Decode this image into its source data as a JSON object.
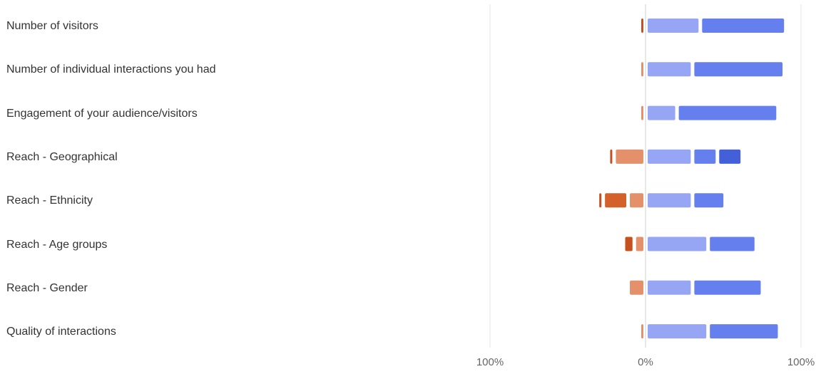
{
  "chart_data": {
    "type": "bar",
    "orientation": "horizontal-diverging",
    "categories": [
      "Number of visitors",
      "Number of individual interactions you had",
      "Engagement of your audience/visitors",
      "Reach - Geographical",
      "Reach - Ethnicity",
      "Reach - Age groups",
      "Reach - Gender",
      "Quality of interactions"
    ],
    "negative_series": [
      {
        "color": "#c7501f",
        "values": [
          1,
          0,
          0,
          1.5,
          2,
          7,
          0,
          0
        ]
      },
      {
        "color": "#d4612a",
        "values": [
          0,
          0,
          0,
          0,
          16,
          0,
          0,
          0
        ]
      },
      {
        "color": "#e3906b",
        "values": [
          0,
          1,
          1,
          20,
          11,
          7,
          11,
          1
        ]
      }
    ],
    "positive_series": [
      {
        "color": "#97a5f5",
        "values": [
          35,
          30,
          20,
          30,
          30,
          40,
          30,
          40
        ]
      },
      {
        "color": "#6580ee",
        "values": [
          55,
          59,
          65,
          16,
          21,
          31,
          45,
          46
        ]
      },
      {
        "color": "#4460d8",
        "values": [
          0,
          0,
          2,
          16,
          2,
          2,
          2,
          2
        ]
      }
    ],
    "xlim": [
      -100,
      100
    ],
    "ticks": [
      {
        "value": -100,
        "label": "100%"
      },
      {
        "value": 0,
        "label": "0%"
      },
      {
        "value": 100,
        "label": "100%"
      }
    ],
    "grid": true,
    "legend": "none",
    "title": "",
    "xlabel": "",
    "ylabel": ""
  }
}
